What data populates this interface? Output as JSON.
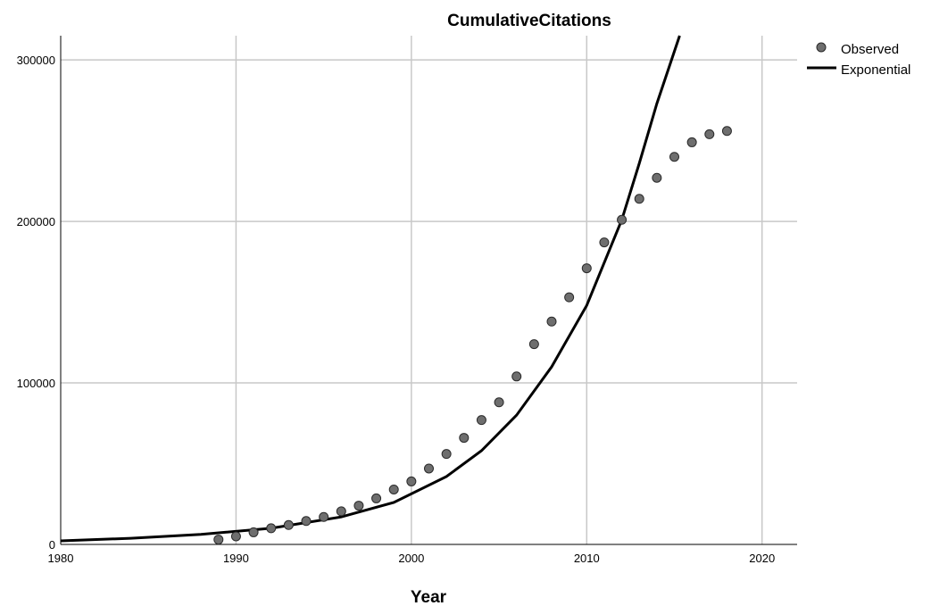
{
  "chart_data": {
    "type": "scatter",
    "title": "CumulativeCitations",
    "xlabel": "Year",
    "ylabel": "",
    "xlim": [
      1980,
      2022
    ],
    "ylim": [
      0,
      315000
    ],
    "xticks": [
      1980,
      1990,
      2000,
      2010,
      2020
    ],
    "xtick_labels": [
      "1980",
      "1990",
      "2000",
      "2010",
      "2020"
    ],
    "yticks": [
      0,
      100000,
      200000,
      300000
    ],
    "ytick_labels": [
      "0",
      "100000",
      "200000",
      "300000"
    ],
    "grid": true,
    "legend_position": "top-right",
    "series": [
      {
        "name": "Observed",
        "kind": "points",
        "color": "#6e6e6e",
        "x": [
          1989,
          1990,
          1991,
          1992,
          1993,
          1994,
          1995,
          1996,
          1997,
          1998,
          1999,
          2000,
          2001,
          2002,
          2003,
          2004,
          2005,
          2006,
          2007,
          2008,
          2009,
          2010,
          2011,
          2012,
          2013,
          2014,
          2015,
          2016,
          2017,
          2018
        ],
        "y": [
          3000,
          5000,
          7500,
          10000,
          12000,
          14500,
          17000,
          20500,
          24000,
          28500,
          34000,
          39000,
          47000,
          56000,
          66000,
          77000,
          88000,
          104000,
          124000,
          138000,
          153000,
          171000,
          187000,
          201000,
          214000,
          227000,
          240000,
          249000,
          254000,
          256000
        ]
      },
      {
        "name": "Exponential",
        "kind": "line",
        "color": "#000000",
        "x": [
          1980,
          1984,
          1988,
          1992,
          1996,
          1999,
          2002,
          2004,
          2006,
          2008,
          2010,
          2012,
          2013,
          2014,
          2015.3
        ],
        "y": [
          2200,
          3800,
          6200,
          10000,
          17000,
          26000,
          42000,
          58000,
          80000,
          110000,
          148000,
          201000,
          236000,
          273000,
          315000
        ]
      }
    ]
  }
}
